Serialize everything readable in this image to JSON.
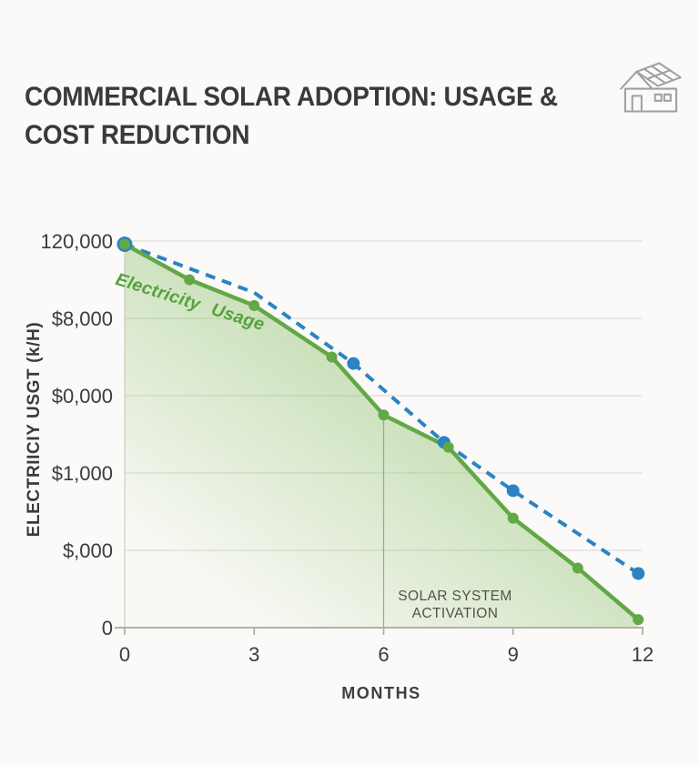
{
  "page": {
    "background": "#fbfaf8"
  },
  "header": {
    "title_line1": "COMMERCIAL SOLAR ADOPTION: USAGE &",
    "title_line2": "COST REDUCTION",
    "title_color": "#3a3a3a",
    "icon": "solar-house-icon"
  },
  "chart_data": {
    "type": "line",
    "title": "COMMERCIAL SOLAR ADOPTION: USAGE & COST REDUCTION",
    "xlabel": "MONTHS",
    "ylabel": "ELECTRIICIY USGT (k/H)",
    "xlim": [
      0,
      12
    ],
    "ylim": [
      0,
      120000
    ],
    "grid": "horizontal",
    "legend_position": "none",
    "x_ticks": [
      0,
      3,
      6,
      9,
      12
    ],
    "y_ticks": [
      {
        "value": 0,
        "label": "0"
      },
      {
        "value": 24000,
        "label": "$,000"
      },
      {
        "value": 48000,
        "label": "$1,000"
      },
      {
        "value": 72000,
        "label": "$0,000"
      },
      {
        "value": 96000,
        "label": "$8,000"
      },
      {
        "value": 120000,
        "label": "120,000"
      }
    ],
    "series": [
      {
        "name": "Electricity Usage",
        "type": "line_area",
        "color": "#62a846",
        "fill_color": "#86bc61",
        "line_style": "solid",
        "x": [
          0,
          1.5,
          3,
          4.8,
          6,
          7.5,
          9,
          10.5,
          11.9
        ],
        "values": [
          119000,
          108000,
          100000,
          84000,
          66000,
          56000,
          34000,
          18500,
          2500
        ],
        "marker_at": [
          true,
          true,
          true,
          true,
          true,
          true,
          true,
          true,
          true
        ]
      },
      {
        "name": "",
        "type": "line",
        "color": "#2b83c4",
        "line_style": "dashed",
        "x": [
          0,
          3,
          5.3,
          7.4,
          9,
          11.9
        ],
        "values": [
          119000,
          104000,
          82000,
          57500,
          42500,
          16800
        ],
        "marker_at": [
          true,
          false,
          true,
          true,
          true,
          true
        ]
      }
    ],
    "inline_label": {
      "text": "Electricity Usage",
      "color": "#55a23f",
      "angle_deg": 17.5
    },
    "annotation": {
      "line_at_month": 6,
      "line_top_value": 66000,
      "text_line1": "SOLAR SYSTEM",
      "text_line2": "ACTIVATION"
    },
    "axis_color": "#b3b0aa",
    "gridline_color": "#e3e2df"
  }
}
